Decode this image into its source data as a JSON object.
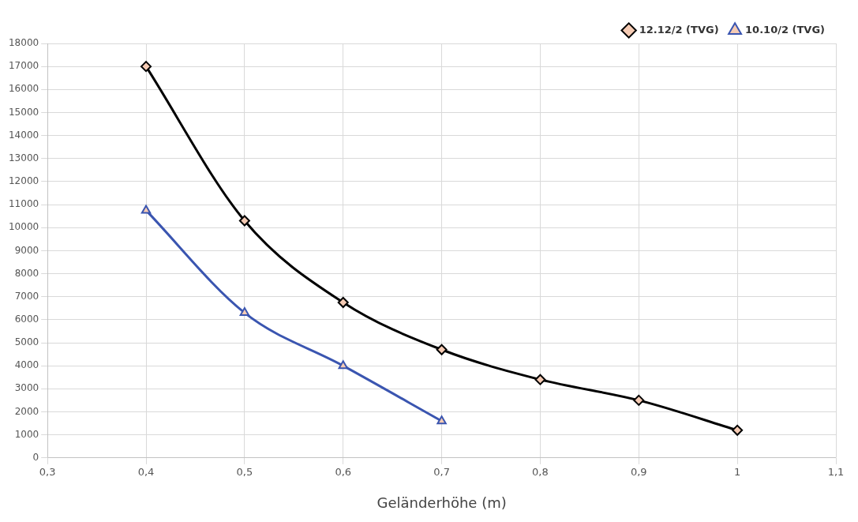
{
  "chart_data": {
    "type": "line",
    "xlabel": "Geländerhöhe (m)",
    "x": [
      0.4,
      0.5,
      0.6,
      0.7,
      0.8,
      0.9,
      1
    ],
    "series": [
      {
        "name": "12.12/2 (TVG)",
        "color": "#000000",
        "marker": "diamond",
        "values": [
          17000,
          10300,
          6750,
          4700,
          3400,
          2500,
          1200
        ]
      },
      {
        "name": "10.10/2 (TVG)",
        "color": "#3a55b0",
        "marker": "triangle",
        "x": [
          0.4,
          0.5,
          0.6,
          0.7
        ],
        "values": [
          10750,
          6300,
          4000,
          1600
        ]
      }
    ],
    "xlim": [
      0.3,
      1.1
    ],
    "xticks": [
      {
        "value": 0.3,
        "label": "0,3"
      },
      {
        "value": 0.4,
        "label": "0,4"
      },
      {
        "value": 0.5,
        "label": "0,5"
      },
      {
        "value": 0.6,
        "label": "0,6"
      },
      {
        "value": 0.7,
        "label": "0,7"
      },
      {
        "value": 0.8,
        "label": "0,8"
      },
      {
        "value": 0.9,
        "label": "0,9"
      },
      1,
      {
        "value": 1.1,
        "label": "1,1"
      }
    ],
    "ylim": [
      0,
      18000
    ],
    "yticks": [
      0,
      1000,
      2000,
      3000,
      4000,
      5000,
      6000,
      7000,
      8000,
      9000,
      10000,
      11000,
      12000,
      13000,
      14000,
      15000,
      16000,
      17000,
      18000
    ],
    "grid": true,
    "legend": "top right"
  }
}
